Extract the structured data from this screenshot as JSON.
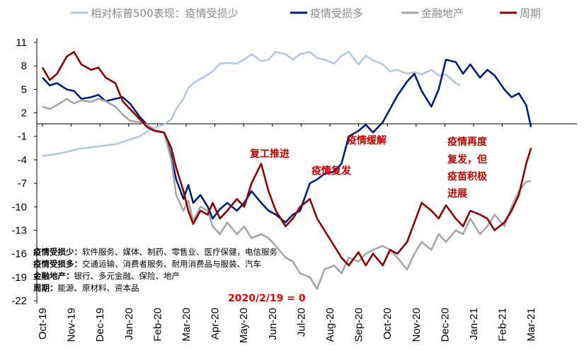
{
  "chart_data": {
    "type": "line",
    "title": "",
    "xlabel": "",
    "ylabel": "",
    "ylim": [
      -22,
      11
    ],
    "y_ticks": [
      11,
      8,
      5,
      2,
      -1,
      -4,
      -7,
      -10,
      -13,
      -16,
      -19,
      -22
    ],
    "x_tick_labels": [
      "Oct-19",
      "Nov-19",
      "Dec-19",
      "Jan-20",
      "Feb-20",
      "Mar-20",
      "Apr-20",
      "May-20",
      "Jun-20",
      "Jul-20",
      "Aug-20",
      "Sep-20",
      "Oct-20",
      "Nov-20",
      "Dec-20",
      "Jan-21",
      "Feb-21",
      "Mar-21"
    ],
    "legend_position": "top",
    "grid": false,
    "series": [
      {
        "name": "相对标普500表现：疫情受损少",
        "color": "#b4c7e7",
        "values": [
          [
            0,
            -3.5
          ],
          [
            0.5,
            -3.3
          ],
          [
            1,
            -3.0
          ],
          [
            1.5,
            -2.6
          ],
          [
            2,
            -2.4
          ],
          [
            2.5,
            -2.2
          ],
          [
            3,
            -2.0
          ],
          [
            3.5,
            -1.5
          ],
          [
            4,
            -1.0
          ],
          [
            4.4,
            -0.2
          ],
          [
            4.7,
            0.2
          ],
          [
            5,
            0.5
          ],
          [
            5.3,
            1.2
          ],
          [
            5.5,
            2.5
          ],
          [
            5.8,
            3.8
          ],
          [
            6,
            5.2
          ],
          [
            6.3,
            6.0
          ],
          [
            6.6,
            6.5
          ],
          [
            7,
            7.3
          ],
          [
            7.3,
            8.3
          ],
          [
            7.6,
            8.4
          ],
          [
            8,
            8.3
          ],
          [
            8.3,
            8.8
          ],
          [
            8.6,
            9.5
          ],
          [
            9,
            8.6
          ],
          [
            9.3,
            8.8
          ],
          [
            9.6,
            9.8
          ],
          [
            10,
            9.5
          ],
          [
            10.3,
            8.8
          ],
          [
            10.6,
            9.5
          ],
          [
            11,
            9.8
          ],
          [
            11.3,
            9.0
          ],
          [
            11.6,
            8.8
          ],
          [
            12,
            8.3
          ],
          [
            12.3,
            9.3
          ],
          [
            12.6,
            9.8
          ],
          [
            13,
            8.2
          ],
          [
            13.3,
            9.3
          ],
          [
            13.6,
            8.7
          ],
          [
            14,
            8.2
          ],
          [
            14.3,
            7.3
          ],
          [
            14.6,
            7.5
          ],
          [
            15,
            7.0
          ],
          [
            15.3,
            7.2
          ],
          [
            15.6,
            6.9
          ],
          [
            16,
            7.5
          ],
          [
            16.3,
            6.8
          ],
          [
            16.6,
            6.9
          ],
          [
            17,
            5.8
          ],
          [
            17.2,
            5.5
          ]
        ]
      },
      {
        "name": "疫情受损多",
        "color": "#00207a",
        "values": [
          [
            0,
            6.5
          ],
          [
            0.3,
            5.5
          ],
          [
            0.6,
            5.8
          ],
          [
            1,
            5.0
          ],
          [
            1.3,
            4.8
          ],
          [
            1.6,
            3.8
          ],
          [
            2,
            4.0
          ],
          [
            2.3,
            4.3
          ],
          [
            2.6,
            3.5
          ],
          [
            3,
            3.8
          ],
          [
            3.3,
            4.0
          ],
          [
            3.6,
            3.2
          ],
          [
            4,
            1.5
          ],
          [
            4.3,
            0.5
          ],
          [
            4.6,
            -0.2
          ],
          [
            5,
            -0.5
          ],
          [
            5.3,
            -3.5
          ],
          [
            5.5,
            -6.5
          ],
          [
            5.8,
            -9.0
          ],
          [
            6,
            -7.2
          ],
          [
            6.2,
            -9.5
          ],
          [
            6.5,
            -8.5
          ],
          [
            6.8,
            -10.0
          ],
          [
            7,
            -11.5
          ],
          [
            7.3,
            -10.3
          ],
          [
            7.6,
            -9.5
          ],
          [
            8,
            -10.5
          ],
          [
            8.3,
            -9.5
          ],
          [
            8.6,
            -8.0
          ],
          [
            9,
            -9.5
          ],
          [
            9.3,
            -10.5
          ],
          [
            9.6,
            -11.0
          ],
          [
            10,
            -12.0
          ],
          [
            10.3,
            -11.0
          ],
          [
            10.6,
            -10.5
          ],
          [
            11,
            -7.0
          ],
          [
            11.3,
            -6.5
          ],
          [
            11.6,
            -5.8
          ],
          [
            12,
            -5.5
          ],
          [
            12.3,
            -4.5
          ],
          [
            12.6,
            -1.0
          ],
          [
            13,
            -0.3
          ],
          [
            13.3,
            0.5
          ],
          [
            13.6,
            -0.5
          ],
          [
            14,
            0.8
          ],
          [
            14.3,
            2.5
          ],
          [
            14.6,
            4.2
          ],
          [
            15,
            6.0
          ],
          [
            15.3,
            7.0
          ],
          [
            15.6,
            4.8
          ],
          [
            16,
            2.8
          ],
          [
            16.3,
            5.0
          ],
          [
            16.6,
            8.8
          ],
          [
            17,
            8.5
          ],
          [
            17.3,
            7.0
          ],
          [
            17.6,
            8.2
          ],
          [
            18,
            6.5
          ],
          [
            18.3,
            7.5
          ],
          [
            18.6,
            6.8
          ],
          [
            19,
            5.0
          ],
          [
            19.3,
            4.0
          ],
          [
            19.6,
            4.5
          ],
          [
            19.9,
            3.0
          ],
          [
            20.1,
            0.2
          ]
        ]
      },
      {
        "name": "金融地产",
        "color": "#a6a6a6",
        "values": [
          [
            0,
            2.8
          ],
          [
            0.3,
            2.5
          ],
          [
            0.6,
            3.0
          ],
          [
            1,
            3.8
          ],
          [
            1.3,
            3.2
          ],
          [
            1.6,
            3.6
          ],
          [
            2,
            3.4
          ],
          [
            2.3,
            3.8
          ],
          [
            2.6,
            3.5
          ],
          [
            3,
            2.8
          ],
          [
            3.3,
            1.8
          ],
          [
            3.6,
            1.0
          ],
          [
            4,
            0.8
          ],
          [
            4.3,
            0.5
          ],
          [
            4.6,
            -0.2
          ],
          [
            5,
            -0.5
          ],
          [
            5.3,
            -4.0
          ],
          [
            5.5,
            -8.5
          ],
          [
            5.8,
            -10.5
          ],
          [
            6,
            -9.2
          ],
          [
            6.2,
            -11.8
          ],
          [
            6.5,
            -10.0
          ],
          [
            6.8,
            -10.5
          ],
          [
            7,
            -12.5
          ],
          [
            7.3,
            -13.5
          ],
          [
            7.6,
            -12.0
          ],
          [
            8,
            -13.5
          ],
          [
            8.3,
            -12.5
          ],
          [
            8.6,
            -14.0
          ],
          [
            9,
            -13.5
          ],
          [
            9.3,
            -14.0
          ],
          [
            9.6,
            -15.0
          ],
          [
            10,
            -16.5
          ],
          [
            10.3,
            -17.0
          ],
          [
            10.6,
            -18.5
          ],
          [
            11,
            -19.0
          ],
          [
            11.3,
            -20.5
          ],
          [
            11.6,
            -18.0
          ],
          [
            12,
            -17.5
          ],
          [
            12.3,
            -18.5
          ],
          [
            12.6,
            -16.5
          ],
          [
            13,
            -17.0
          ],
          [
            13.3,
            -16.0
          ],
          [
            13.6,
            -15.5
          ],
          [
            14,
            -15.0
          ],
          [
            14.3,
            -15.5
          ],
          [
            14.6,
            -16.5
          ],
          [
            15,
            -18.0
          ],
          [
            15.3,
            -16.0
          ],
          [
            15.6,
            -14.5
          ],
          [
            16,
            -15.5
          ],
          [
            16.3,
            -13.5
          ],
          [
            16.6,
            -14.5
          ],
          [
            17,
            -13.0
          ],
          [
            17.3,
            -13.5
          ],
          [
            17.6,
            -11.5
          ],
          [
            18,
            -13.5
          ],
          [
            18.3,
            -12.5
          ],
          [
            18.6,
            -11.0
          ],
          [
            19,
            -12.5
          ],
          [
            19.3,
            -10.0
          ],
          [
            19.6,
            -8.0
          ],
          [
            19.9,
            -6.8
          ],
          [
            20.1,
            -6.7
          ]
        ]
      },
      {
        "name": "周期",
        "color": "#8b0000",
        "values": [
          [
            0,
            7.8
          ],
          [
            0.3,
            6.2
          ],
          [
            0.6,
            7.0
          ],
          [
            1,
            9.2
          ],
          [
            1.3,
            9.8
          ],
          [
            1.6,
            8.2
          ],
          [
            2,
            7.5
          ],
          [
            2.3,
            7.8
          ],
          [
            2.6,
            6.5
          ],
          [
            3,
            5.8
          ],
          [
            3.3,
            3.5
          ],
          [
            3.6,
            2.5
          ],
          [
            4,
            1.2
          ],
          [
            4.3,
            0.2
          ],
          [
            4.6,
            -0.3
          ],
          [
            5,
            -0.5
          ],
          [
            5.3,
            -2.5
          ],
          [
            5.5,
            -5.0
          ],
          [
            5.8,
            -8.0
          ],
          [
            6,
            -10.5
          ],
          [
            6.2,
            -12.2
          ],
          [
            6.5,
            -10.5
          ],
          [
            6.8,
            -11.0
          ],
          [
            7,
            -9.5
          ],
          [
            7.3,
            -11.5
          ],
          [
            7.6,
            -10.5
          ],
          [
            8,
            -9.0
          ],
          [
            8.3,
            -10.0
          ],
          [
            8.6,
            -7.0
          ],
          [
            9,
            -4.5
          ],
          [
            9.3,
            -8.0
          ],
          [
            9.6,
            -10.5
          ],
          [
            10,
            -12.5
          ],
          [
            10.3,
            -11.5
          ],
          [
            10.6,
            -10.0
          ],
          [
            11,
            -9.0
          ],
          [
            11.3,
            -11.5
          ],
          [
            11.6,
            -13.0
          ],
          [
            12,
            -15.0
          ],
          [
            12.3,
            -16.5
          ],
          [
            12.6,
            -17.5
          ],
          [
            13,
            -15.8
          ],
          [
            13.3,
            -17.5
          ],
          [
            13.6,
            -16.0
          ],
          [
            14,
            -17.5
          ],
          [
            14.3,
            -15.5
          ],
          [
            14.6,
            -16.0
          ],
          [
            15,
            -14.5
          ],
          [
            15.3,
            -12.0
          ],
          [
            15.6,
            -9.5
          ],
          [
            16,
            -10.5
          ],
          [
            16.3,
            -11.5
          ],
          [
            16.6,
            -9.8
          ],
          [
            17,
            -11.5
          ],
          [
            17.3,
            -12.5
          ],
          [
            17.6,
            -10.5
          ],
          [
            18,
            -11.0
          ],
          [
            18.3,
            -11.5
          ],
          [
            18.6,
            -13.0
          ],
          [
            19,
            -12.0
          ],
          [
            19.3,
            -10.5
          ],
          [
            19.6,
            -8.5
          ],
          [
            19.9,
            -4.5
          ],
          [
            20.1,
            -2.5
          ]
        ]
      }
    ],
    "annotations": [
      {
        "text": "复工推进"
      },
      {
        "text": "疫情复发"
      },
      {
        "text": "疫情缓解"
      },
      {
        "text": "疫情再度"
      },
      {
        "text": "复发，但"
      },
      {
        "text": "疫苗积极"
      },
      {
        "text": "进展"
      }
    ],
    "notes": [
      {
        "label": "疫情受损少：",
        "text": "软件服务、媒体、制药、零售业、医疗保健，电信服务"
      },
      {
        "label": "疫情受损多：",
        "text": "交通运输、消费者服务、耐用消费品与服装、汽车"
      },
      {
        "label": "金融地产：",
        "text": "银行、多元金融、保险、地产"
      },
      {
        "label": "周期：",
        "text": "能源、原材料、资本品"
      }
    ],
    "baseline_note": "2020/2/19 = 0"
  }
}
